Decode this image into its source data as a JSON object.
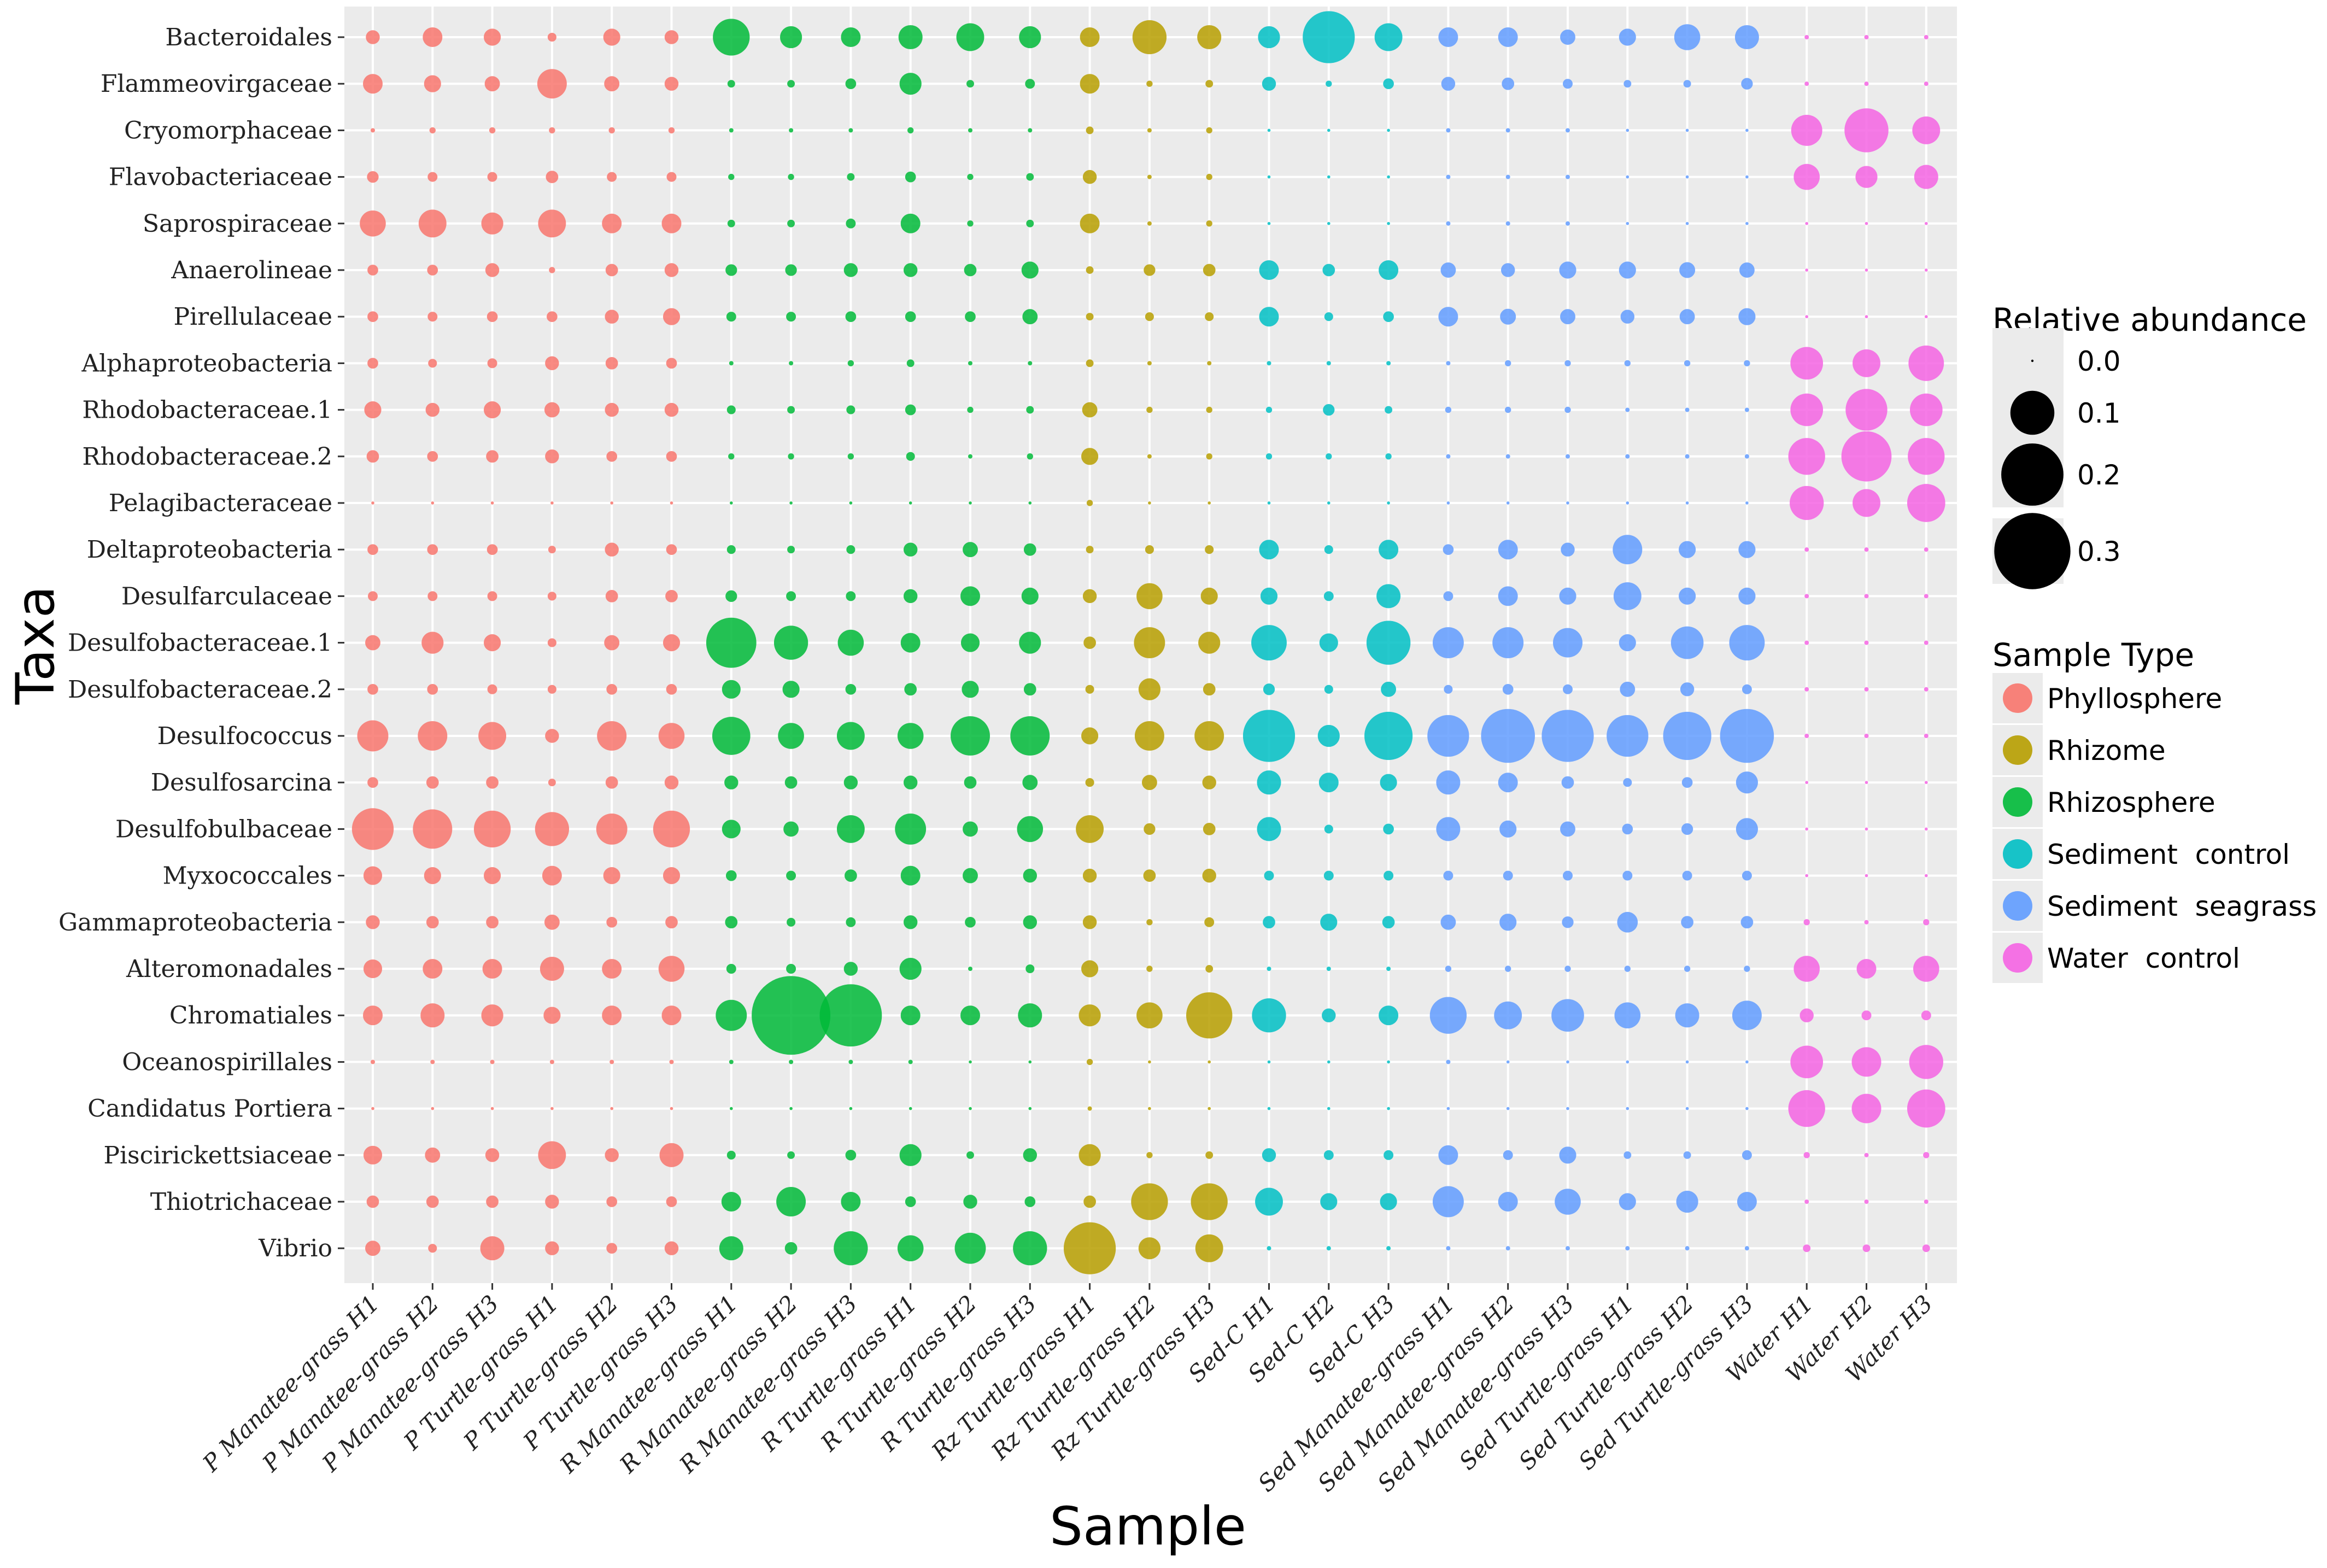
{
  "chart_data": {
    "type": "scatter",
    "title": "",
    "xlabel": "Sample",
    "ylabel": "Taxa",
    "grid": true,
    "legend_position": "right",
    "taxa": [
      "Bacteroidales",
      "Flammeovirgaceae",
      "Cryomorphaceae",
      "Flavobacteriaceae",
      "Saprospiraceae",
      "Anaerolineae",
      "Pirellulaceae",
      "Alphaproteobacteria",
      "Rhodobacteraceae.1",
      "Rhodobacteraceae.2",
      "Pelagibacteraceae",
      "Deltaproteobacteria",
      "Desulfarculaceae",
      "Desulfobacteraceae.1",
      "Desulfobacteraceae.2",
      "Desulfococcus",
      "Desulfosarcina",
      "Desulfobulbaceae",
      "Myxococcales",
      "Gammaproteobacteria",
      "Alteromonadales",
      "Chromatiales",
      "Oceanospirillales",
      "Candidatus Portiera",
      "Piscirickettsiaceae",
      "Thiotrichaceae",
      "Vibrio"
    ],
    "samples": [
      "P Manatee-grass H1",
      "P Manatee-grass H2",
      "P Manatee-grass H3",
      "P Turtle-grass H1",
      "P Turtle-grass H2",
      "P Turtle-grass H3",
      "R Manatee-grass H1",
      "R Manatee-grass H2",
      "R Manatee-grass H3",
      "R Turtle-grass H1",
      "R Turtle-grass H2",
      "R Turtle-grass H3",
      "Rz Turtle-grass H1",
      "Rz Turtle-grass H2",
      "Rz Turtle-grass H3",
      "Sed-C H1",
      "Sed-C H2",
      "Sed-C H3",
      "Sed Manatee-grass H1",
      "Sed Manatee-grass H2",
      "Sed Manatee-grass H3",
      "Sed Turtle-grass H1",
      "Sed Turtle-grass H2",
      "Sed Turtle-grass H3",
      "Water H1",
      "Water H2",
      "Water H3"
    ],
    "sample_types": [
      "Phyllosphere",
      "Phyllosphere",
      "Phyllosphere",
      "Phyllosphere",
      "Phyllosphere",
      "Phyllosphere",
      "Rhizosphere",
      "Rhizosphere",
      "Rhizosphere",
      "Rhizosphere",
      "Rhizosphere",
      "Rhizosphere",
      "Rhizome",
      "Rhizome",
      "Rhizome",
      "Sediment control",
      "Sediment control",
      "Sediment control",
      "Sediment seagrass",
      "Sediment seagrass",
      "Sediment seagrass",
      "Sediment seagrass",
      "Sediment seagrass",
      "Sediment seagrass",
      "Water control",
      "Water control",
      "Water control"
    ],
    "abundance": [
      [
        0.01,
        0.02,
        0.015,
        0.004,
        0.015,
        0.01,
        0.07,
        0.025,
        0.02,
        0.03,
        0.04,
        0.025,
        0.02,
        0.06,
        0.03,
        0.025,
        0.14,
        0.04,
        0.02,
        0.02,
        0.012,
        0.015,
        0.035,
        0.03,
        0.001,
        0.001,
        0.001
      ],
      [
        0.02,
        0.015,
        0.012,
        0.045,
        0.012,
        0.01,
        0.003,
        0.003,
        0.006,
        0.025,
        0.003,
        0.005,
        0.02,
        0.002,
        0.003,
        0.01,
        0.002,
        0.006,
        0.01,
        0.008,
        0.005,
        0.003,
        0.003,
        0.007,
        0.001,
        0.001,
        0.001
      ],
      [
        0.001,
        0.002,
        0.002,
        0.002,
        0.002,
        0.002,
        0.001,
        0.001,
        0.001,
        0.002,
        0.001,
        0.001,
        0.003,
        0.001,
        0.002,
        0.0005,
        0.0005,
        0.0005,
        0.001,
        0.001,
        0.001,
        0.0005,
        0.0005,
        0.0005,
        0.05,
        0.1,
        0.04
      ],
      [
        0.007,
        0.005,
        0.005,
        0.008,
        0.005,
        0.005,
        0.002,
        0.002,
        0.003,
        0.006,
        0.002,
        0.003,
        0.01,
        0.001,
        0.002,
        0.0005,
        0.0005,
        0.0005,
        0.001,
        0.001,
        0.001,
        0.0005,
        0.0005,
        0.0005,
        0.035,
        0.025,
        0.03
      ],
      [
        0.035,
        0.04,
        0.025,
        0.04,
        0.02,
        0.02,
        0.003,
        0.003,
        0.005,
        0.02,
        0.002,
        0.003,
        0.02,
        0.001,
        0.002,
        0.0005,
        0.0005,
        0.0005,
        0.001,
        0.001,
        0.001,
        0.0005,
        0.0005,
        0.0005,
        0.0005,
        0.0005,
        0.0005
      ],
      [
        0.006,
        0.006,
        0.01,
        0.002,
        0.008,
        0.01,
        0.007,
        0.007,
        0.01,
        0.01,
        0.008,
        0.015,
        0.003,
        0.007,
        0.008,
        0.02,
        0.008,
        0.02,
        0.012,
        0.01,
        0.015,
        0.015,
        0.013,
        0.012,
        0.0005,
        0.0005,
        0.0005
      ],
      [
        0.006,
        0.005,
        0.006,
        0.006,
        0.01,
        0.015,
        0.005,
        0.005,
        0.006,
        0.006,
        0.006,
        0.012,
        0.003,
        0.004,
        0.004,
        0.02,
        0.004,
        0.006,
        0.02,
        0.013,
        0.012,
        0.01,
        0.012,
        0.015,
        0.0005,
        0.0005,
        0.0005
      ],
      [
        0.006,
        0.004,
        0.005,
        0.01,
        0.008,
        0.006,
        0.001,
        0.001,
        0.002,
        0.003,
        0.001,
        0.001,
        0.003,
        0.001,
        0.001,
        0.001,
        0.001,
        0.001,
        0.001,
        0.002,
        0.002,
        0.002,
        0.002,
        0.002,
        0.055,
        0.04,
        0.065
      ],
      [
        0.015,
        0.01,
        0.015,
        0.012,
        0.01,
        0.01,
        0.004,
        0.003,
        0.004,
        0.006,
        0.002,
        0.003,
        0.012,
        0.002,
        0.002,
        0.002,
        0.007,
        0.003,
        0.002,
        0.002,
        0.002,
        0.001,
        0.001,
        0.001,
        0.055,
        0.09,
        0.055
      ],
      [
        0.008,
        0.006,
        0.008,
        0.01,
        0.006,
        0.006,
        0.002,
        0.002,
        0.002,
        0.004,
        0.001,
        0.002,
        0.015,
        0.001,
        0.002,
        0.002,
        0.002,
        0.002,
        0.001,
        0.001,
        0.001,
        0.001,
        0.001,
        0.001,
        0.07,
        0.13,
        0.07
      ],
      [
        0.0005,
        0.0005,
        0.0005,
        0.0005,
        0.0005,
        0.0005,
        0.0005,
        0.0005,
        0.0005,
        0.0005,
        0.0005,
        0.0005,
        0.002,
        0.0005,
        0.0005,
        0.0005,
        0.0005,
        0.0005,
        0.0005,
        0.0005,
        0.0005,
        0.0005,
        0.0005,
        0.0005,
        0.06,
        0.04,
        0.075
      ],
      [
        0.006,
        0.006,
        0.006,
        0.003,
        0.01,
        0.006,
        0.004,
        0.003,
        0.004,
        0.01,
        0.012,
        0.008,
        0.003,
        0.004,
        0.004,
        0.02,
        0.004,
        0.02,
        0.006,
        0.02,
        0.01,
        0.045,
        0.015,
        0.015,
        0.001,
        0.001,
        0.001
      ],
      [
        0.005,
        0.005,
        0.005,
        0.004,
        0.008,
        0.008,
        0.007,
        0.005,
        0.005,
        0.01,
        0.02,
        0.015,
        0.01,
        0.035,
        0.015,
        0.015,
        0.005,
        0.03,
        0.005,
        0.02,
        0.015,
        0.04,
        0.015,
        0.015,
        0.001,
        0.001,
        0.001
      ],
      [
        0.012,
        0.025,
        0.015,
        0.004,
        0.012,
        0.015,
        0.13,
        0.06,
        0.035,
        0.02,
        0.018,
        0.025,
        0.008,
        0.05,
        0.025,
        0.065,
        0.018,
        0.1,
        0.05,
        0.05,
        0.045,
        0.015,
        0.055,
        0.065,
        0.001,
        0.001,
        0.001
      ],
      [
        0.006,
        0.006,
        0.005,
        0.004,
        0.006,
        0.006,
        0.018,
        0.015,
        0.006,
        0.008,
        0.015,
        0.008,
        0.004,
        0.025,
        0.008,
        0.007,
        0.004,
        0.012,
        0.004,
        0.006,
        0.005,
        0.012,
        0.01,
        0.005,
        0.001,
        0.001,
        0.001
      ],
      [
        0.05,
        0.045,
        0.04,
        0.01,
        0.045,
        0.035,
        0.075,
        0.035,
        0.04,
        0.035,
        0.08,
        0.08,
        0.015,
        0.045,
        0.045,
        0.14,
        0.025,
        0.12,
        0.09,
        0.15,
        0.14,
        0.09,
        0.12,
        0.15,
        0.001,
        0.001,
        0.001
      ],
      [
        0.006,
        0.008,
        0.008,
        0.003,
        0.008,
        0.01,
        0.01,
        0.008,
        0.01,
        0.01,
        0.008,
        0.012,
        0.004,
        0.012,
        0.01,
        0.03,
        0.02,
        0.015,
        0.03,
        0.02,
        0.008,
        0.004,
        0.006,
        0.025,
        0.0005,
        0.0005,
        0.0005
      ],
      [
        0.09,
        0.08,
        0.07,
        0.06,
        0.05,
        0.07,
        0.018,
        0.012,
        0.04,
        0.05,
        0.012,
        0.035,
        0.04,
        0.007,
        0.008,
        0.03,
        0.004,
        0.006,
        0.03,
        0.015,
        0.012,
        0.006,
        0.007,
        0.025,
        0.0005,
        0.0005,
        0.0005
      ],
      [
        0.018,
        0.015,
        0.015,
        0.02,
        0.015,
        0.015,
        0.006,
        0.005,
        0.008,
        0.02,
        0.012,
        0.01,
        0.01,
        0.008,
        0.01,
        0.005,
        0.005,
        0.005,
        0.005,
        0.005,
        0.005,
        0.005,
        0.005,
        0.005,
        0.0005,
        0.0005,
        0.0005
      ],
      [
        0.01,
        0.008,
        0.008,
        0.012,
        0.006,
        0.008,
        0.008,
        0.004,
        0.005,
        0.01,
        0.006,
        0.01,
        0.01,
        0.002,
        0.005,
        0.008,
        0.015,
        0.008,
        0.012,
        0.015,
        0.007,
        0.022,
        0.008,
        0.008,
        0.002,
        0.001,
        0.002
      ],
      [
        0.018,
        0.02,
        0.02,
        0.03,
        0.02,
        0.035,
        0.005,
        0.005,
        0.01,
        0.025,
        0.001,
        0.004,
        0.015,
        0.002,
        0.003,
        0.001,
        0.001,
        0.001,
        0.002,
        0.002,
        0.002,
        0.002,
        0.002,
        0.002,
        0.035,
        0.02,
        0.035
      ],
      [
        0.02,
        0.03,
        0.025,
        0.015,
        0.02,
        0.02,
        0.05,
        0.32,
        0.2,
        0.02,
        0.02,
        0.03,
        0.025,
        0.035,
        0.11,
        0.06,
        0.01,
        0.02,
        0.07,
        0.04,
        0.055,
        0.035,
        0.03,
        0.045,
        0.01,
        0.005,
        0.005
      ],
      [
        0.001,
        0.001,
        0.001,
        0.001,
        0.001,
        0.001,
        0.001,
        0.001,
        0.001,
        0.001,
        0.0005,
        0.0005,
        0.002,
        0.0005,
        0.0005,
        0.0005,
        0.0005,
        0.0005,
        0.001,
        0.0005,
        0.0005,
        0.0005,
        0.0005,
        0.0005,
        0.055,
        0.045,
        0.06
      ],
      [
        0.0005,
        0.0005,
        0.0005,
        0.0005,
        0.0005,
        0.0005,
        0.0005,
        0.0005,
        0.0005,
        0.0005,
        0.0005,
        0.0005,
        0.001,
        0.0005,
        0.0005,
        0.0005,
        0.0005,
        0.0005,
        0.0005,
        0.0005,
        0.0005,
        0.0005,
        0.0005,
        0.0005,
        0.07,
        0.045,
        0.075
      ],
      [
        0.018,
        0.012,
        0.01,
        0.04,
        0.01,
        0.03,
        0.004,
        0.003,
        0.006,
        0.025,
        0.003,
        0.01,
        0.025,
        0.002,
        0.003,
        0.01,
        0.005,
        0.005,
        0.02,
        0.005,
        0.015,
        0.003,
        0.003,
        0.005,
        0.002,
        0.001,
        0.002
      ],
      [
        0.008,
        0.008,
        0.008,
        0.01,
        0.006,
        0.006,
        0.02,
        0.045,
        0.02,
        0.006,
        0.01,
        0.006,
        0.008,
        0.07,
        0.07,
        0.04,
        0.015,
        0.015,
        0.05,
        0.02,
        0.035,
        0.015,
        0.025,
        0.02,
        0.001,
        0.001,
        0.001
      ],
      [
        0.012,
        0.004,
        0.03,
        0.01,
        0.006,
        0.01,
        0.03,
        0.008,
        0.06,
        0.035,
        0.05,
        0.06,
        0.14,
        0.025,
        0.04,
        0.001,
        0.001,
        0.001,
        0.001,
        0.001,
        0.001,
        0.001,
        0.001,
        0.001,
        0.003,
        0.003,
        0.003
      ]
    ]
  },
  "legend": {
    "size_title": "Relative abundance",
    "size_entries": [
      {
        "label": "0.0",
        "value": 0.0003
      },
      {
        "label": "0.1",
        "value": 0.1
      },
      {
        "label": "0.2",
        "value": 0.2
      },
      {
        "label": "0.3",
        "value": 0.3
      }
    ],
    "type_title": "Sample Type",
    "type_entries": [
      {
        "label": "Phyllosphere",
        "color": "#F8766D"
      },
      {
        "label": "Rhizome",
        "color": "#B79F00"
      },
      {
        "label": "Rhizosphere",
        "color": "#00BA38"
      },
      {
        "label": "Sediment  control",
        "color": "#00BFC4"
      },
      {
        "label": "Sediment  seagrass",
        "color": "#619CFF"
      },
      {
        "label": "Water  control",
        "color": "#F564E3"
      }
    ]
  },
  "colors": {
    "Phyllosphere": "#F8766D",
    "Rhizome": "#B79F00",
    "Rhizosphere": "#00BA38",
    "Sediment control": "#00BFC4",
    "Sediment seagrass": "#619CFF",
    "Water control": "#F564E3",
    "panel": "#EBEBEB"
  }
}
